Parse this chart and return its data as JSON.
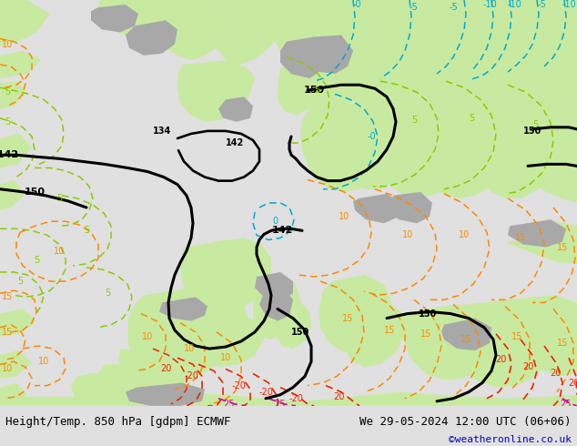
{
  "title_left": "Height/Temp. 850 hPa [gdpm] ECMWF",
  "title_right": "We 29-05-2024 12:00 UTC (06+06)",
  "credit": "©weatheronline.co.uk",
  "title_fontsize": 9,
  "credit_fontsize": 8,
  "credit_color": "#0000cc",
  "bottom_text_color": "#000000",
  "fig_width": 6.34,
  "fig_height": 4.9,
  "dpi": 100,
  "map_bg": "#e8e8e8",
  "land_green": "#c8eaa0",
  "land_gray": "#a8a8a8",
  "ocean_color": "#d8d8d8",
  "bottom_bar_color": "#e8e8e8",
  "cyan_color": "#00aacc",
  "green_color": "#88cc00",
  "orange_color": "#ff8800",
  "red_color": "#ee2200",
  "magenta_color": "#cc00aa",
  "black_lw": 2.2,
  "temp_lw": 1.1
}
